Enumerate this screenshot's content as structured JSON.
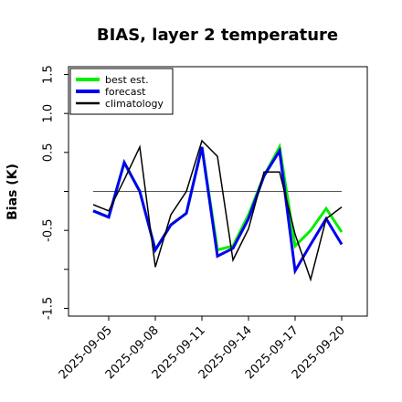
{
  "chart_data": {
    "type": "line",
    "title": "BIAS, layer 2 temperature",
    "xlabel": "",
    "ylabel": "Bias (K)",
    "ylim": [
      -1.6,
      1.6
    ],
    "yticks": [
      -1.5,
      -1.0,
      -0.5,
      0.0,
      0.5,
      1.0,
      1.5
    ],
    "yticklabels": [
      "-1.5",
      "",
      "-0.5",
      "",
      "0.5",
      "1.0",
      "1.5"
    ],
    "xlim": [
      "2025-09-03",
      "2025-09-20"
    ],
    "xticks": [
      "2025-09-05",
      "2025-09-08",
      "2025-09-11",
      "2025-09-14",
      "2025-09-17",
      "2025-09-20"
    ],
    "xtick_highlight": "2025-09-11",
    "xtick_highlight_color": "#228B22",
    "zero_line": true,
    "grid": false,
    "legend_position": "top-left",
    "x": [
      "2025-09-04",
      "2025-09-05",
      "2025-09-06",
      "2025-09-07",
      "2025-09-08",
      "2025-09-09",
      "2025-09-10",
      "2025-09-11",
      "2025-09-12",
      "2025-09-13",
      "2025-09-14",
      "2025-09-15",
      "2025-09-16",
      "2025-09-17",
      "2025-09-18",
      "2025-09-19",
      "2025-09-20"
    ],
    "series": [
      {
        "name": "best est.",
        "color": "#00ee00",
        "width": 3,
        "values": [
          -0.25,
          -0.33,
          0.37,
          0.0,
          -0.75,
          -0.43,
          -0.28,
          0.57,
          -0.75,
          -0.7,
          -0.3,
          0.2,
          0.57,
          -0.7,
          -0.5,
          -0.22,
          -0.52
        ]
      },
      {
        "name": "forecast",
        "color": "#0000ee",
        "width": 3,
        "values": [
          -0.25,
          -0.33,
          0.37,
          0.0,
          -0.75,
          -0.43,
          -0.28,
          0.57,
          -0.83,
          -0.73,
          -0.35,
          0.2,
          0.52,
          -1.02,
          -0.68,
          -0.35,
          -0.68
        ]
      },
      {
        "name": "climatology",
        "color": "#000000",
        "width": 1.5,
        "values": [
          -0.17,
          -0.25,
          0.15,
          0.57,
          -0.97,
          -0.3,
          0.0,
          0.65,
          0.45,
          -0.88,
          -0.48,
          0.25,
          0.25,
          -0.55,
          -1.13,
          -0.35,
          -0.2
        ]
      }
    ]
  }
}
